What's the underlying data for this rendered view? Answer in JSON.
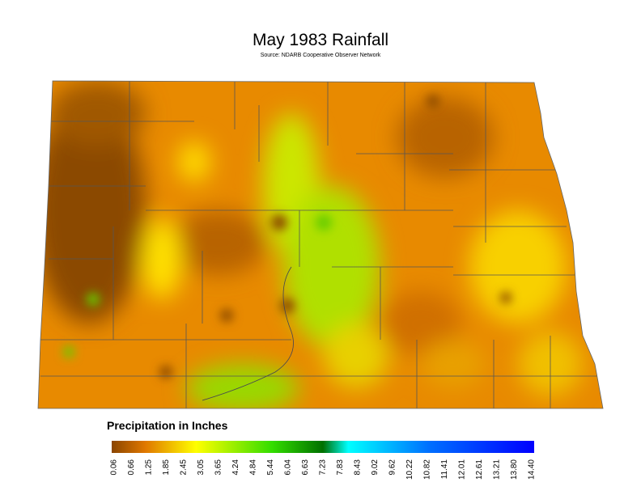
{
  "title": "May 1983 Rainfall",
  "source": "Source: NDARB Cooperative Observer Network",
  "legend": {
    "title": "Precipitation in Inches",
    "ticks": [
      "0.06",
      "0.66",
      "1.25",
      "1.85",
      "2.45",
      "3.05",
      "3.65",
      "4.24",
      "4.84",
      "5.44",
      "6.04",
      "6.63",
      "7.23",
      "7.83",
      "8.43",
      "9.02",
      "9.62",
      "10.22",
      "10.82",
      "11.41",
      "12.01",
      "12.61",
      "13.21",
      "13.80",
      "14.40"
    ]
  }
}
